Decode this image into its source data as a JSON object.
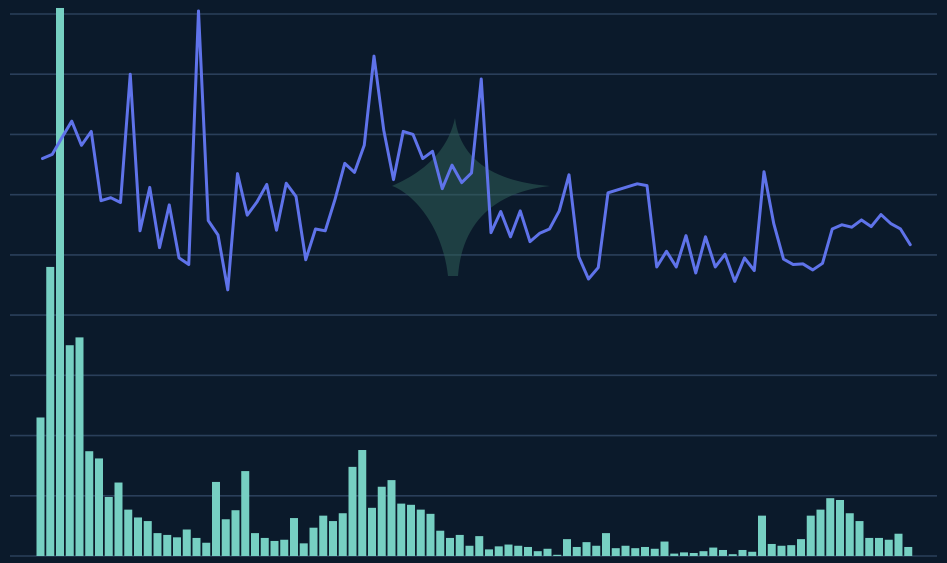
{
  "chart_data": {
    "type": "bar+line",
    "title": "",
    "xlabel": "",
    "ylabel": "",
    "grid": true,
    "colors": {
      "background": "#0b1a2b",
      "grid": "#2a3f5a",
      "bars": "#76cfc2",
      "line": "#5f73ea",
      "watermark": "#2f5e58"
    },
    "series": [
      {
        "kind": "bar",
        "ylim": [
          0,
          9
        ],
        "values": [
          2.3,
          4.8,
          9.1,
          3.5,
          3.63,
          1.74,
          1.62,
          0.98,
          1.22,
          0.77,
          0.64,
          0.58,
          0.38,
          0.35,
          0.31,
          0.44,
          0.3,
          0.22,
          1.23,
          0.61,
          0.76,
          1.41,
          0.38,
          0.3,
          0.25,
          0.27,
          0.63,
          0.21,
          0.47,
          0.67,
          0.58,
          0.71,
          1.48,
          1.76,
          0.8,
          1.15,
          1.26,
          0.87,
          0.85,
          0.77,
          0.7,
          0.42,
          0.3,
          0.35,
          0.17,
          0.33,
          0.11,
          0.16,
          0.19,
          0.17,
          0.15,
          0.08,
          0.12,
          0.02,
          0.28,
          0.15,
          0.23,
          0.17,
          0.38,
          0.13,
          0.17,
          0.13,
          0.15,
          0.12,
          0.24,
          0.04,
          0.06,
          0.05,
          0.08,
          0.14,
          0.1,
          0.03,
          0.1,
          0.07,
          0.67,
          0.2,
          0.17,
          0.18,
          0.28,
          0.67,
          0.77,
          0.96,
          0.93,
          0.71,
          0.58,
          0.3,
          0.3,
          0.27,
          0.37,
          0.15
        ]
      },
      {
        "kind": "line",
        "ylim": [
          0,
          9
        ],
        "values": [
          6.6,
          6.67,
          6.95,
          7.22,
          6.82,
          7.05,
          5.9,
          5.95,
          5.87,
          8.0,
          5.4,
          6.12,
          5.12,
          5.83,
          4.95,
          4.84,
          9.05,
          5.57,
          5.33,
          4.42,
          6.35,
          5.66,
          5.88,
          6.17,
          5.41,
          6.19,
          5.97,
          4.92,
          5.43,
          5.4,
          5.92,
          6.52,
          6.37,
          6.82,
          8.3,
          7.07,
          6.25,
          7.05,
          7.0,
          6.6,
          6.72,
          6.1,
          6.49,
          6.2,
          6.36,
          7.92,
          5.37,
          5.72,
          5.3,
          5.73,
          5.22,
          5.36,
          5.43,
          5.73,
          6.33,
          4.97,
          4.6,
          4.79,
          6.03,
          6.08,
          6.13,
          6.18,
          6.15,
          4.8,
          5.06,
          4.8,
          5.32,
          4.7,
          5.3,
          4.8,
          5.01,
          4.56,
          4.95,
          4.74,
          6.38,
          5.52,
          4.93,
          4.84,
          4.85,
          4.75,
          4.86,
          5.43,
          5.5,
          5.46,
          5.58,
          5.47,
          5.67,
          5.52,
          5.43,
          5.17
        ]
      }
    ]
  }
}
